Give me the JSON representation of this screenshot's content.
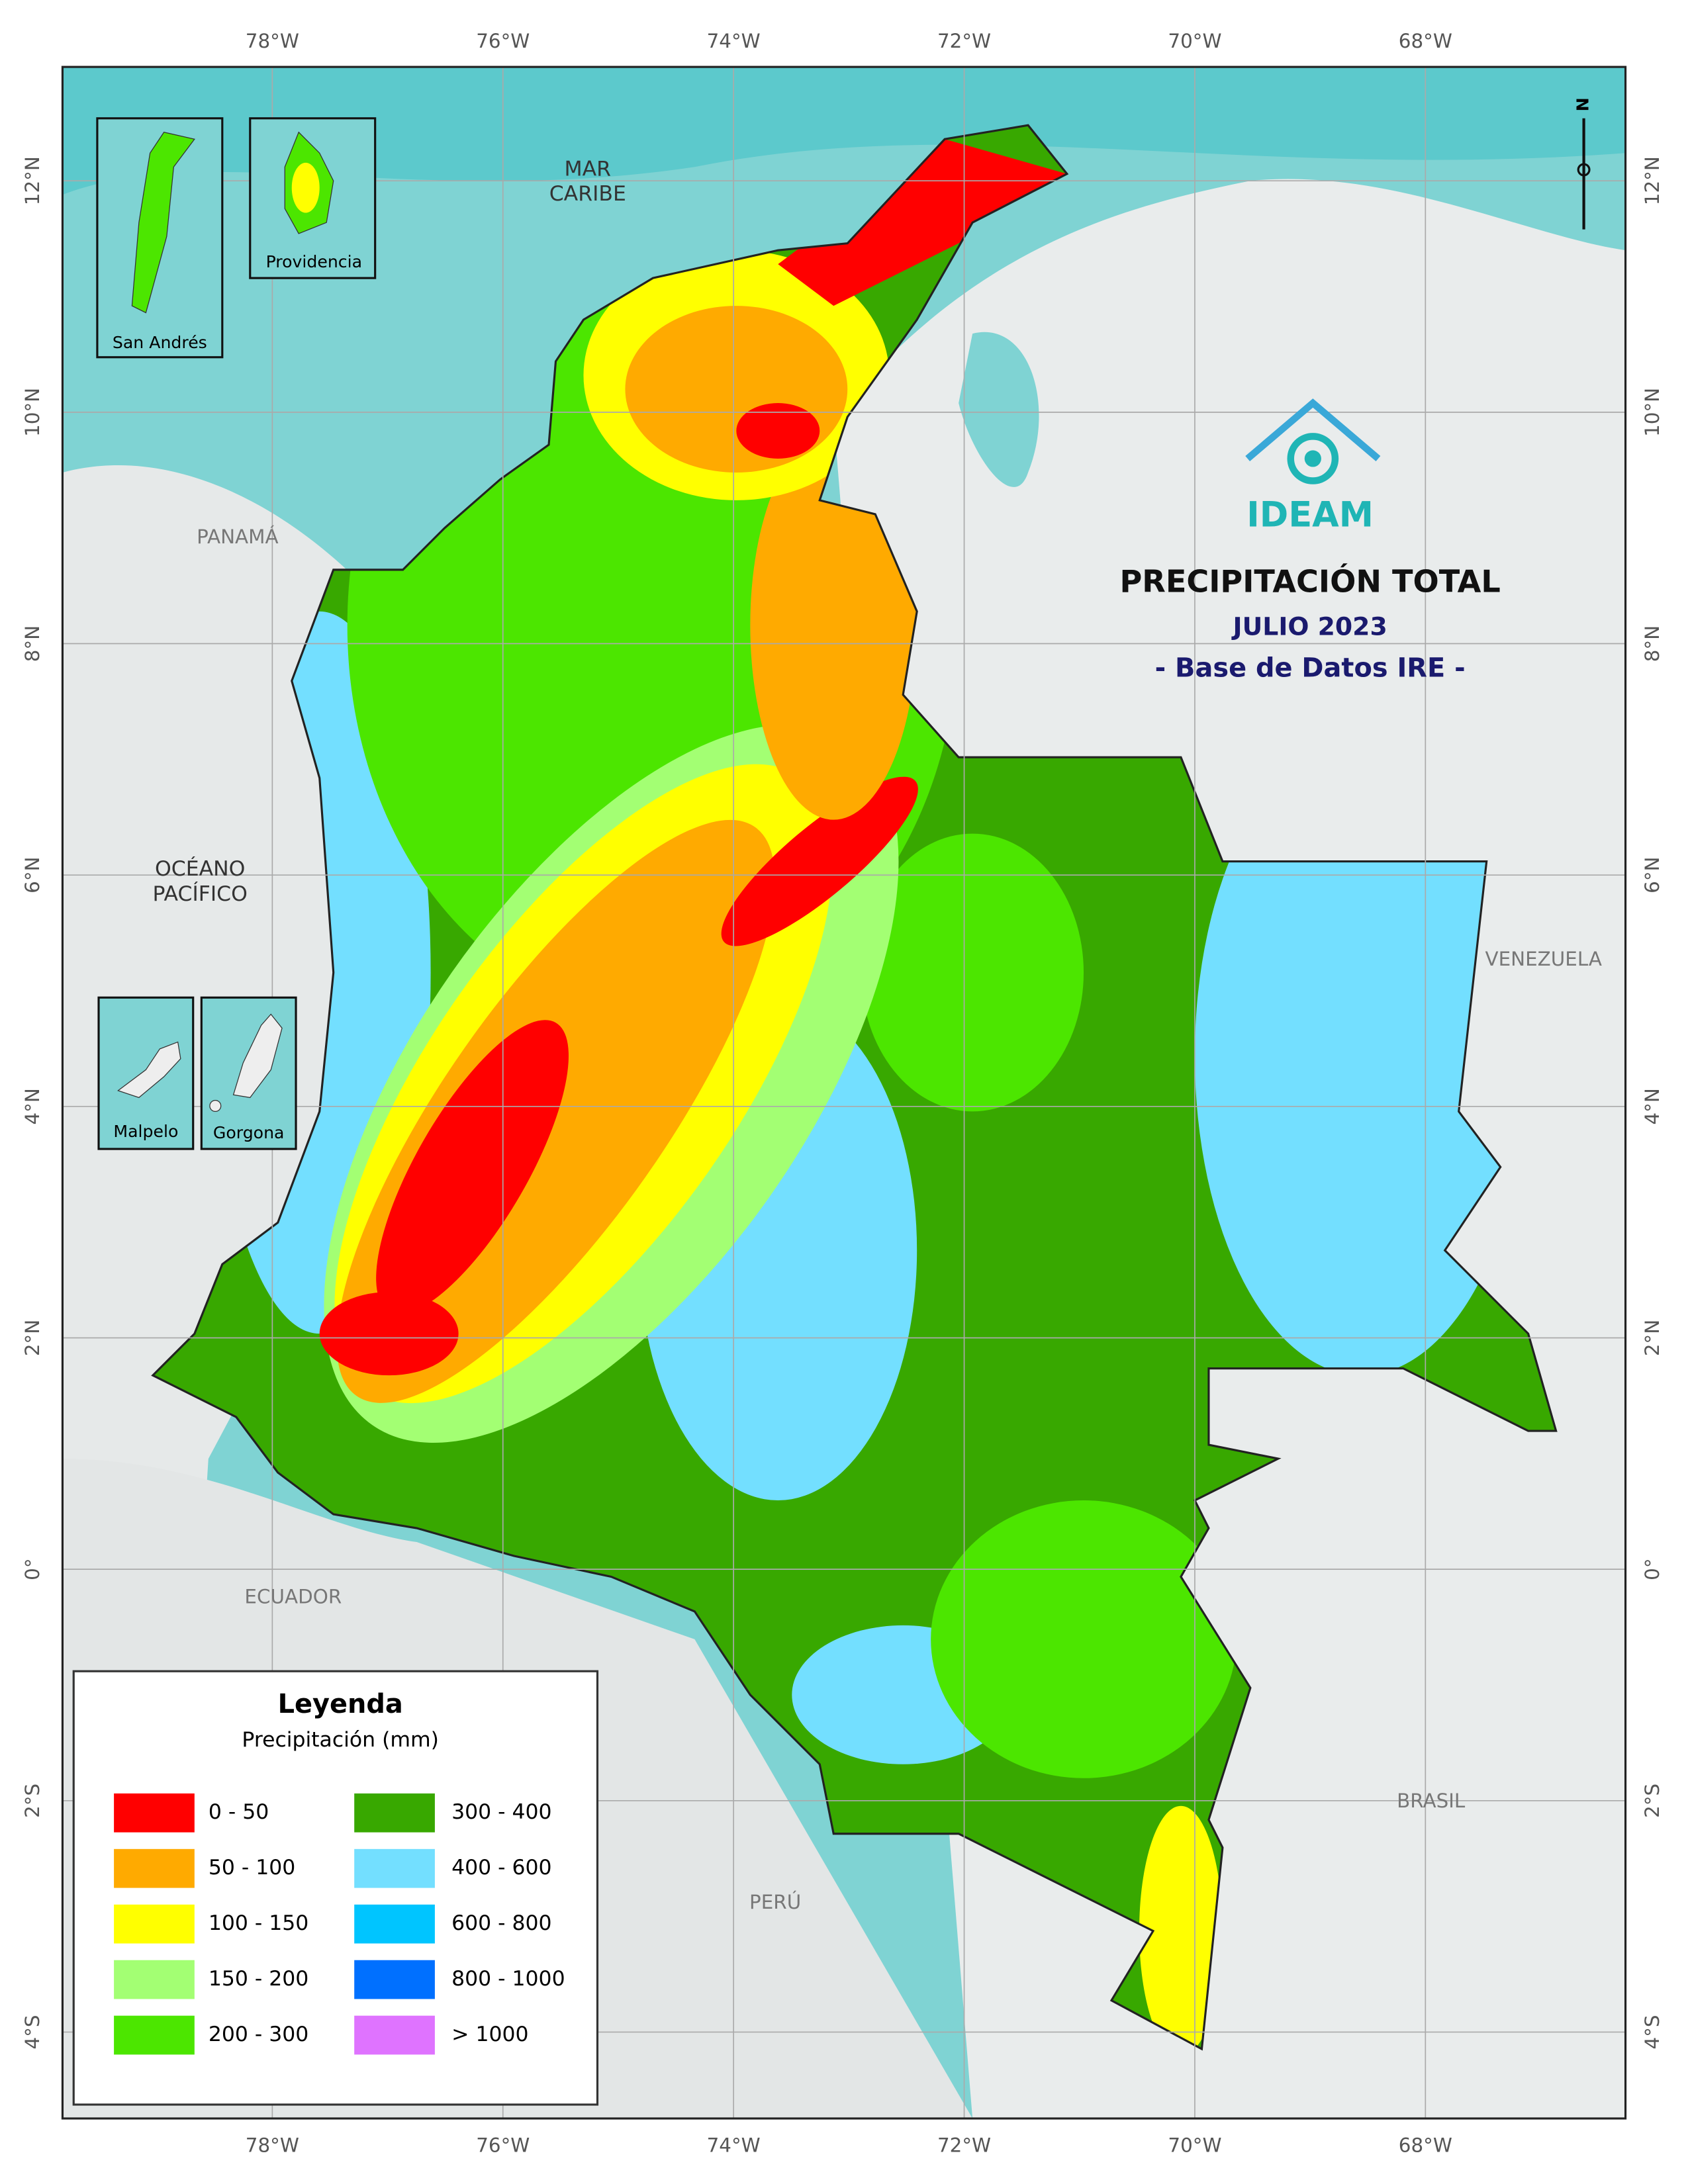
{
  "title": "PRECIPITACIÓN TOTAL",
  "subtitle": "JULIO 2023",
  "source": "- Base de Datos IRE -",
  "logo": "IDEAM",
  "north": "N",
  "longitudes": [
    "78°W",
    "76°W",
    "74°W",
    "72°W",
    "70°W",
    "68°W"
  ],
  "latitudes": [
    "12°N",
    "10°N",
    "8°N",
    "6°N",
    "4°N",
    "2°N",
    "0°",
    "2°S",
    "4°S"
  ],
  "seas": {
    "caribbean": [
      "MAR",
      "CARIBE"
    ],
    "pacific": [
      "OCÉANO",
      "PACÍFICO"
    ]
  },
  "countries": {
    "panama": "PANAMÁ",
    "venezuela": "VENEZUELA",
    "ecuador": "ECUADOR",
    "brasil": "BRASIL",
    "peru": "PERÚ"
  },
  "insets": [
    "San Andrés",
    "Providencia",
    "Malpelo",
    "Gorgona"
  ],
  "legend": {
    "title": "Leyenda",
    "subtitle": "Precipitación (mm)",
    "items": [
      {
        "label": "0 - 50",
        "color": "#ff0000"
      },
      {
        "label": "50 - 100",
        "color": "#ffaa00"
      },
      {
        "label": "100 - 150",
        "color": "#ffff00"
      },
      {
        "label": "150 - 200",
        "color": "#a3ff73"
      },
      {
        "label": "200 - 300",
        "color": "#4ce600"
      },
      {
        "label": "300 - 400",
        "color": "#38a800"
      },
      {
        "label": "400 - 600",
        "color": "#73dfff"
      },
      {
        "label": "600 - 800",
        "color": "#00c5ff"
      },
      {
        "label": "800 - 1000",
        "color": "#0070ff"
      },
      {
        "label": "> 1000",
        "color": "#df73ff"
      }
    ]
  }
}
